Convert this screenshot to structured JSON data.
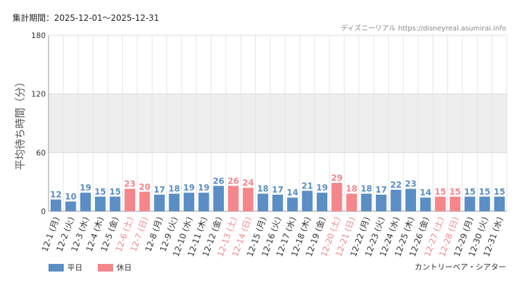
{
  "header": {
    "period": "集計期間：2025-12-01～2025-12-31",
    "source": "ディズニーリアル https://disneyreal.asumirai.info"
  },
  "footer": {
    "attraction": "カントリーベア・シアター"
  },
  "legend": [
    {
      "label": "平日",
      "color": "#5b8ec4"
    },
    {
      "label": "休日",
      "color": "#f4868c"
    }
  ],
  "colors": {
    "weekday": "#5b8ec4",
    "holiday": "#f4868c",
    "band": "#eeeeee",
    "grid": "#e6e6e6"
  },
  "chart_data": {
    "type": "bar",
    "ylabel": "平均待ち時間（分）",
    "ylim": [
      0,
      180
    ],
    "yticks": [
      0,
      60,
      120,
      180
    ],
    "grid": true,
    "legend_position": "bottom-left",
    "categories": [
      "12-1 (月)",
      "12-2 (火)",
      "12-3 (水)",
      "12-4 (木)",
      "12-5 (金)",
      "12-6 (土)",
      "12-7 (日)",
      "12-8 (月)",
      "12-9 (火)",
      "12-10 (水)",
      "12-11 (木)",
      "12-12 (金)",
      "12-13 (土)",
      "12-14 (日)",
      "12-15 (月)",
      "12-16 (火)",
      "12-17 (水)",
      "12-18 (木)",
      "12-19 (金)",
      "12-20 (土)",
      "12-21 (日)",
      "12-22 (月)",
      "12-23 (火)",
      "12-24 (水)",
      "12-25 (木)",
      "12-26 (金)",
      "12-27 (土)",
      "12-28 (日)",
      "12-29 (月)",
      "12-30 (火)",
      "12-31 (水)"
    ],
    "values": [
      12,
      10,
      19,
      15,
      15,
      23,
      20,
      17,
      18,
      19,
      19,
      26,
      26,
      24,
      18,
      17,
      14,
      21,
      19,
      29,
      18,
      18,
      17,
      22,
      23,
      14,
      15,
      15,
      15,
      15,
      15
    ],
    "holiday": [
      false,
      false,
      false,
      false,
      false,
      true,
      true,
      false,
      false,
      false,
      false,
      false,
      true,
      true,
      false,
      false,
      false,
      false,
      false,
      true,
      true,
      false,
      false,
      false,
      false,
      false,
      true,
      true,
      false,
      false,
      false
    ],
    "series": [
      {
        "name": "平日"
      },
      {
        "name": "休日"
      }
    ]
  }
}
